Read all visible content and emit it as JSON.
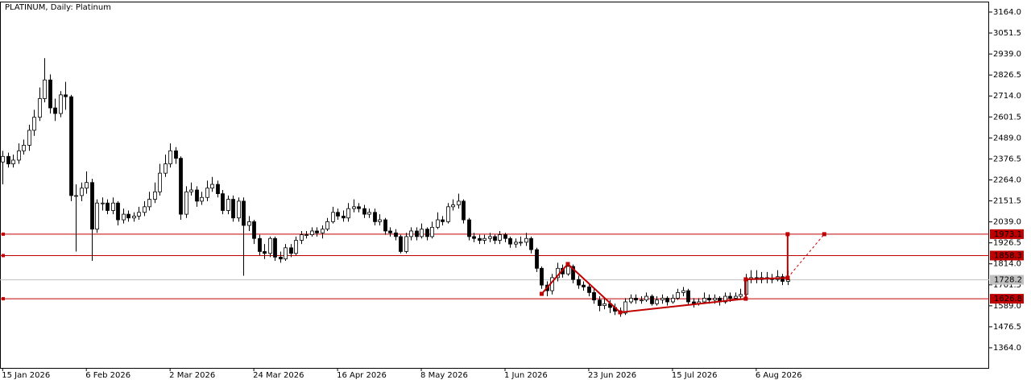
{
  "chart_data": {
    "type": "candlestick",
    "title": "PLATINUM, Daily:  Platinum",
    "xlim": [
      -0.5,
      188.5
    ],
    "xticks": [
      {
        "value": 0,
        "label": "15 Jan 2026"
      },
      {
        "value": 16,
        "label": "6 Feb 2026"
      },
      {
        "value": 32,
        "label": "2 Mar 2026"
      },
      {
        "value": 48,
        "label": "24 Mar 2026"
      },
      {
        "value": 64,
        "label": "16 Apr 2026"
      },
      {
        "value": 80,
        "label": "8 May 2026"
      },
      {
        "value": 96,
        "label": "1 Jun 2026"
      },
      {
        "value": 112,
        "label": "23 Jun 2026"
      },
      {
        "value": 128,
        "label": "15 Jul 2026"
      },
      {
        "value": 144,
        "label": "6 Aug 2026"
      }
    ],
    "ylim": [
      1256,
      3220
    ],
    "yticks": [
      {
        "value": 3164,
        "label": "3164.0"
      },
      {
        "value": 3051.5,
        "label": "3051.5"
      },
      {
        "value": 2939,
        "label": "2939.0"
      },
      {
        "value": 2826.5,
        "label": "2826.5"
      },
      {
        "value": 2714,
        "label": "2714.0"
      },
      {
        "value": 2601.5,
        "label": "2601.5"
      },
      {
        "value": 2489,
        "label": "2489.0"
      },
      {
        "value": 2376.5,
        "label": "2376.5"
      },
      {
        "value": 2264,
        "label": "2264.0"
      },
      {
        "value": 2151.5,
        "label": "2151.5"
      },
      {
        "value": 2039,
        "label": "2039.0"
      },
      {
        "value": 1926.5,
        "label": "1926.5"
      },
      {
        "value": 1814,
        "label": "1814.0"
      },
      {
        "value": 1701.5,
        "label": "1701.5"
      },
      {
        "value": 1589,
        "label": "1589.0"
      },
      {
        "value": 1476.5,
        "label": "1476.5"
      },
      {
        "value": 1364,
        "label": "1364.0"
      }
    ],
    "up_color": "#ffffff",
    "down_color": "#000000",
    "open": [
      2360,
      2390,
      2350,
      2370,
      2420,
      2450,
      2530,
      2600,
      2700,
      2800,
      2650,
      2620,
      2720,
      2710,
      2180,
      2180,
      2220,
      2250,
      2000,
      2140,
      2140,
      2100,
      2140,
      2050,
      2080,
      2060,
      2070,
      2090,
      2120,
      2160,
      2200,
      2300,
      2350,
      2420,
      2380,
      2080,
      2200,
      2210,
      2150,
      2170,
      2220,
      2240,
      2190,
      2100,
      2160,
      2060,
      2150,
      2020,
      2040,
      1950,
      1880,
      1870,
      1950,
      1850,
      1840,
      1900,
      1870,
      1940,
      1970,
      1970,
      1990,
      1980,
      2000,
      2040,
      2090,
      2070,
      2060,
      2110,
      2120,
      2110,
      2080,
      2090,
      2040,
      2050,
      1990,
      1980,
      1960,
      1880,
      1960,
      1990,
      1960,
      2000,
      1960,
      2010,
      2050,
      2040,
      2120,
      2130,
      2150,
      2050,
      1960,
      1950,
      1940,
      1950,
      1960,
      1940,
      1970,
      1950,
      1920,
      1930,
      1930,
      1950,
      1890,
      1790,
      1700,
      1670,
      1740,
      1790,
      1760,
      1800,
      1730,
      1700,
      1690,
      1660,
      1620,
      1590,
      1600,
      1580,
      1560,
      1550,
      1610,
      1630,
      1620,
      1620,
      1640,
      1600,
      1620,
      1630,
      1610,
      1630,
      1660,
      1670,
      1610,
      1600,
      1610,
      1630,
      1620,
      1630,
      1610,
      1640,
      1630,
      1640,
      1650,
      1730,
      1740,
      1730,
      1740,
      1735,
      1730,
      1745,
      1720
    ],
    "high": [
      2420,
      2410,
      2400,
      2460,
      2480,
      2560,
      2640,
      2760,
      2917,
      2830,
      2700,
      2740,
      2790,
      2720,
      2240,
      2250,
      2310,
      2270,
      2160,
      2170,
      2160,
      2170,
      2150,
      2110,
      2100,
      2090,
      2120,
      2150,
      2200,
      2250,
      2350,
      2400,
      2460,
      2440,
      2390,
      2230,
      2250,
      2230,
      2200,
      2260,
      2280,
      2260,
      2210,
      2180,
      2180,
      2170,
      2170,
      2070,
      2050,
      1970,
      1920,
      1960,
      1960,
      1880,
      1920,
      1920,
      1960,
      1990,
      1990,
      2010,
      2010,
      2020,
      2060,
      2120,
      2110,
      2100,
      2140,
      2160,
      2140,
      2130,
      2110,
      2110,
      2080,
      2060,
      2010,
      2000,
      1970,
      1980,
      2010,
      2010,
      2030,
      2010,
      2040,
      2090,
      2070,
      2140,
      2160,
      2190,
      2160,
      2060,
      1980,
      1970,
      1970,
      1980,
      1970,
      1990,
      1980,
      1960,
      1950,
      1960,
      1980,
      1960,
      1900,
      1800,
      1720,
      1760,
      1820,
      1810,
      1820,
      1810,
      1750,
      1720,
      1710,
      1680,
      1640,
      1630,
      1620,
      1600,
      1580,
      1630,
      1650,
      1650,
      1640,
      1660,
      1650,
      1640,
      1650,
      1640,
      1650,
      1680,
      1690,
      1680,
      1630,
      1630,
      1660,
      1650,
      1650,
      1640,
      1660,
      1660,
      1660,
      1680,
      1760,
      1780,
      1780,
      1770,
      1770,
      1760,
      1780,
      1760,
      1780
    ],
    "low": [
      2240,
      2330,
      2330,
      2350,
      2400,
      2420,
      2500,
      2580,
      2680,
      2620,
      2580,
      2600,
      2640,
      2150,
      1880,
      2150,
      2190,
      1830,
      1980,
      2100,
      2080,
      2080,
      2020,
      2030,
      2040,
      2040,
      2050,
      2070,
      2100,
      2140,
      2180,
      2280,
      2330,
      2350,
      2050,
      2060,
      2180,
      2120,
      2130,
      2150,
      2200,
      2170,
      2080,
      2080,
      2040,
      2040,
      1750,
      1990,
      1920,
      1860,
      1840,
      1850,
      1830,
      1820,
      1830,
      1850,
      1860,
      1920,
      1950,
      1960,
      1960,
      1950,
      1990,
      2030,
      2050,
      2040,
      2040,
      2090,
      2090,
      2060,
      2060,
      2020,
      2020,
      1970,
      1960,
      1940,
      1870,
      1870,
      1940,
      1940,
      1950,
      1940,
      1950,
      2000,
      2020,
      2030,
      2100,
      2110,
      2030,
      1940,
      1930,
      1920,
      1920,
      1930,
      1920,
      1920,
      1930,
      1900,
      1900,
      1910,
      1910,
      1870,
      1770,
      1680,
      1640,
      1650,
      1720,
      1740,
      1750,
      1710,
      1680,
      1670,
      1640,
      1600,
      1560,
      1570,
      1550,
      1540,
      1530,
      1540,
      1600,
      1600,
      1600,
      1610,
      1590,
      1590,
      1600,
      1590,
      1600,
      1620,
      1640,
      1590,
      1580,
      1590,
      1600,
      1600,
      1600,
      1590,
      1600,
      1610,
      1620,
      1630,
      1640,
      1710,
      1710,
      1710,
      1710,
      1710,
      1720,
      1700,
      1700
    ],
    "close": [
      2390,
      2350,
      2370,
      2420,
      2450,
      2530,
      2600,
      2700,
      2800,
      2650,
      2620,
      2720,
      2710,
      2180,
      2180,
      2220,
      2250,
      2000,
      2140,
      2140,
      2100,
      2140,
      2050,
      2080,
      2060,
      2070,
      2090,
      2120,
      2160,
      2200,
      2300,
      2350,
      2420,
      2380,
      2080,
      2200,
      2210,
      2150,
      2170,
      2220,
      2240,
      2190,
      2100,
      2160,
      2060,
      2150,
      2020,
      2040,
      1950,
      1880,
      1870,
      1950,
      1850,
      1840,
      1900,
      1870,
      1940,
      1970,
      1970,
      1990,
      1980,
      2000,
      2040,
      2090,
      2070,
      2060,
      2110,
      2120,
      2110,
      2080,
      2090,
      2040,
      2050,
      1990,
      1980,
      1960,
      1880,
      1960,
      1990,
      1960,
      2000,
      1960,
      2010,
      2050,
      2040,
      2120,
      2130,
      2150,
      2050,
      1960,
      1950,
      1940,
      1950,
      1960,
      1940,
      1970,
      1950,
      1920,
      1930,
      1930,
      1950,
      1890,
      1790,
      1700,
      1670,
      1740,
      1790,
      1760,
      1800,
      1730,
      1700,
      1690,
      1660,
      1620,
      1590,
      1600,
      1580,
      1560,
      1550,
      1610,
      1630,
      1620,
      1620,
      1640,
      1600,
      1620,
      1630,
      1610,
      1630,
      1660,
      1670,
      1610,
      1600,
      1610,
      1630,
      1620,
      1630,
      1610,
      1640,
      1630,
      1640,
      1650,
      1730,
      1740,
      1730,
      1740,
      1735,
      1730,
      1745,
      1720,
      1728.2
    ],
    "levels": {
      "values": [
        1973.1,
        1858.3,
        1626.8
      ],
      "color": "#c00000"
    },
    "last_price": {
      "value": 1728.2,
      "color": "#c0c0c0"
    },
    "trend_path": {
      "x": [
        103,
        108,
        118,
        142,
        142,
        150,
        150
      ],
      "y": [
        1653,
        1813,
        1554,
        1627,
        1731,
        1739,
        1973
      ],
      "color": "#c00000"
    },
    "projection": {
      "x": [
        150,
        157
      ],
      "y": [
        1739,
        1973
      ],
      "color": "#c00000"
    }
  }
}
